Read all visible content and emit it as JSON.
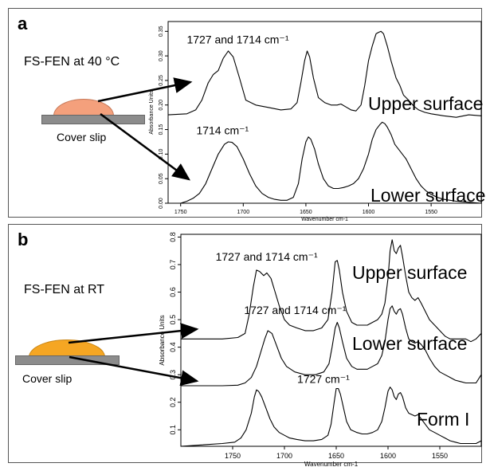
{
  "chart_data": [
    {
      "type": "line",
      "panel": "a",
      "sample_label": "FS-FEN at 40 °C",
      "slip_label": "Cover slip",
      "drop_color": "#f4a07c",
      "xlabel": "Wavenumber cm-1",
      "ylabel": "Absorbance Units",
      "xlim": [
        1760,
        1510
      ],
      "ylim": [
        0.0,
        0.37
      ],
      "x_ticks": [
        "1750",
        "1700",
        "1650",
        "1600",
        "1550"
      ],
      "x_tick_values": [
        1750,
        1700,
        1650,
        1600,
        1550
      ],
      "y_ticks": [
        "0.00",
        "0.05",
        "0.10",
        "0.15",
        "0.20",
        "0.25",
        "0.30",
        "0.35"
      ],
      "y_tick_values": [
        0.0,
        0.05,
        0.1,
        0.15,
        0.2,
        0.25,
        0.3,
        0.35
      ],
      "grid": false,
      "series": [
        {
          "name": "Upper surface",
          "x": [
            1760,
            1745,
            1738,
            1733,
            1728,
            1724,
            1720,
            1716,
            1712,
            1708,
            1703,
            1698,
            1690,
            1680,
            1670,
            1662,
            1657,
            1654,
            1651,
            1649,
            1647,
            1644,
            1640,
            1635,
            1630,
            1625,
            1622,
            1618,
            1614,
            1610,
            1606,
            1603,
            1600,
            1597,
            1594,
            1592,
            1590,
            1588,
            1585,
            1582,
            1578,
            1575,
            1572,
            1568,
            1564,
            1560,
            1555,
            1550,
            1545,
            1540,
            1530,
            1520,
            1510
          ],
          "y": [
            0.18,
            0.182,
            0.19,
            0.21,
            0.245,
            0.262,
            0.27,
            0.295,
            0.31,
            0.298,
            0.255,
            0.21,
            0.2,
            0.195,
            0.19,
            0.192,
            0.205,
            0.245,
            0.29,
            0.31,
            0.298,
            0.255,
            0.215,
            0.205,
            0.2,
            0.2,
            0.202,
            0.196,
            0.19,
            0.188,
            0.2,
            0.24,
            0.29,
            0.32,
            0.345,
            0.348,
            0.35,
            0.345,
            0.32,
            0.29,
            0.255,
            0.24,
            0.22,
            0.21,
            0.198,
            0.19,
            0.185,
            0.182,
            0.18,
            0.178,
            0.175,
            0.18,
            0.178
          ]
        },
        {
          "name": "Lower surface",
          "x": [
            1760,
            1750,
            1745,
            1740,
            1735,
            1730,
            1725,
            1720,
            1715,
            1712,
            1709,
            1705,
            1700,
            1695,
            1690,
            1685,
            1680,
            1675,
            1670,
            1665,
            1660,
            1656,
            1653,
            1650,
            1648,
            1646,
            1643,
            1640,
            1636,
            1632,
            1628,
            1624,
            1620,
            1616,
            1612,
            1608,
            1604,
            1600,
            1597,
            1594,
            1591,
            1589,
            1587,
            1585,
            1582,
            1579,
            1576,
            1573,
            1570,
            1566,
            1562,
            1558,
            1554,
            1550,
            1545,
            1540,
            1530,
            1520,
            1510
          ],
          "y": [
            0.0,
            0.0,
            0.004,
            0.01,
            0.02,
            0.04,
            0.07,
            0.1,
            0.12,
            0.125,
            0.124,
            0.115,
            0.09,
            0.06,
            0.035,
            0.02,
            0.012,
            0.008,
            0.006,
            0.006,
            0.012,
            0.04,
            0.09,
            0.125,
            0.135,
            0.13,
            0.11,
            0.08,
            0.05,
            0.035,
            0.03,
            0.03,
            0.032,
            0.035,
            0.04,
            0.05,
            0.07,
            0.1,
            0.13,
            0.15,
            0.16,
            0.165,
            0.162,
            0.155,
            0.14,
            0.12,
            0.11,
            0.1,
            0.09,
            0.07,
            0.05,
            0.035,
            0.025,
            0.018,
            0.012,
            0.008,
            0.004,
            0.002,
            0.0
          ]
        }
      ],
      "annotations": [
        {
          "text": "1727 and 1714 cm⁻¹",
          "x": 1712,
          "y": 0.325
        },
        {
          "text": "1714 cm⁻¹",
          "x": 1712,
          "y": 0.14
        }
      ]
    },
    {
      "type": "line",
      "panel": "b",
      "sample_label": "FS-FEN at RT",
      "slip_label": "Cover slip",
      "drop_color": "#f5a623",
      "xlabel": "Wavenumber cm-1",
      "ylabel": "Absorbance Units",
      "xlim": [
        1800,
        1510
      ],
      "ylim": [
        0.04,
        0.81
      ],
      "x_ticks": [
        "1750",
        "1700",
        "1650",
        "1600",
        "1550"
      ],
      "x_tick_values": [
        1750,
        1700,
        1650,
        1600,
        1550
      ],
      "y_ticks": [
        "0.1",
        "0.2",
        "0.3",
        "0.4",
        "0.5",
        "0.6",
        "0.7",
        "0.8"
      ],
      "y_tick_values": [
        0.1,
        0.2,
        0.3,
        0.4,
        0.5,
        0.6,
        0.7,
        0.8
      ],
      "grid": false,
      "series": [
        {
          "name": "Upper surface",
          "x": [
            1800,
            1780,
            1760,
            1745,
            1738,
            1734,
            1730,
            1727,
            1724,
            1720,
            1717,
            1713,
            1709,
            1705,
            1700,
            1695,
            1688,
            1680,
            1672,
            1664,
            1658,
            1654,
            1651,
            1649,
            1647,
            1644,
            1640,
            1635,
            1630,
            1625,
            1620,
            1615,
            1610,
            1606,
            1603,
            1600,
            1598,
            1596,
            1594,
            1592,
            1590,
            1588,
            1586,
            1583,
            1580,
            1577,
            1574,
            1571,
            1568,
            1564,
            1560,
            1555,
            1550,
            1545,
            1540,
            1535,
            1530,
            1525,
            1520,
            1515,
            1510
          ],
          "y": [
            0.43,
            0.43,
            0.43,
            0.435,
            0.45,
            0.52,
            0.62,
            0.68,
            0.675,
            0.66,
            0.67,
            0.65,
            0.6,
            0.55,
            0.5,
            0.48,
            0.47,
            0.46,
            0.46,
            0.47,
            0.5,
            0.6,
            0.71,
            0.715,
            0.68,
            0.6,
            0.53,
            0.49,
            0.48,
            0.48,
            0.48,
            0.49,
            0.5,
            0.52,
            0.56,
            0.65,
            0.75,
            0.79,
            0.75,
            0.74,
            0.76,
            0.77,
            0.73,
            0.66,
            0.6,
            0.58,
            0.57,
            0.58,
            0.56,
            0.53,
            0.5,
            0.48,
            0.46,
            0.44,
            0.43,
            0.43,
            0.43,
            0.43,
            0.42,
            0.43,
            0.45
          ]
        },
        {
          "name": "Lower surface",
          "x": [
            1800,
            1780,
            1760,
            1745,
            1738,
            1732,
            1727,
            1723,
            1719,
            1716,
            1712,
            1708,
            1703,
            1698,
            1690,
            1680,
            1670,
            1662,
            1657,
            1654,
            1651,
            1649,
            1647,
            1644,
            1640,
            1635,
            1630,
            1625,
            1620,
            1615,
            1610,
            1606,
            1603,
            1600,
            1598,
            1596,
            1594,
            1592,
            1590,
            1588,
            1586,
            1583,
            1580,
            1577,
            1574,
            1571,
            1568,
            1564,
            1560,
            1555,
            1550,
            1545,
            1540,
            1535,
            1530,
            1525,
            1520,
            1515,
            1510
          ],
          "y": [
            0.26,
            0.26,
            0.26,
            0.262,
            0.27,
            0.29,
            0.33,
            0.38,
            0.43,
            0.46,
            0.45,
            0.41,
            0.36,
            0.33,
            0.31,
            0.3,
            0.3,
            0.31,
            0.34,
            0.4,
            0.47,
            0.49,
            0.47,
            0.42,
            0.36,
            0.33,
            0.32,
            0.32,
            0.32,
            0.33,
            0.34,
            0.37,
            0.42,
            0.5,
            0.54,
            0.55,
            0.53,
            0.52,
            0.535,
            0.54,
            0.52,
            0.47,
            0.43,
            0.42,
            0.415,
            0.42,
            0.41,
            0.39,
            0.36,
            0.33,
            0.31,
            0.3,
            0.29,
            0.28,
            0.275,
            0.27,
            0.27,
            0.27,
            0.3
          ]
        },
        {
          "name": "Form I",
          "x": [
            1800,
            1780,
            1760,
            1748,
            1742,
            1737,
            1732,
            1729,
            1727,
            1725,
            1722,
            1718,
            1714,
            1710,
            1705,
            1700,
            1695,
            1688,
            1680,
            1672,
            1664,
            1658,
            1655,
            1652,
            1650,
            1648,
            1646,
            1643,
            1640,
            1636,
            1630,
            1625,
            1620,
            1615,
            1610,
            1606,
            1603,
            1600,
            1598,
            1596,
            1594,
            1592,
            1590,
            1588,
            1586,
            1583,
            1580,
            1577,
            1574,
            1571,
            1568,
            1564,
            1560,
            1555,
            1550,
            1545,
            1540,
            1535,
            1530,
            1525,
            1520,
            1515,
            1510
          ],
          "y": [
            0.04,
            0.045,
            0.05,
            0.055,
            0.07,
            0.1,
            0.16,
            0.22,
            0.245,
            0.24,
            0.22,
            0.18,
            0.14,
            0.11,
            0.09,
            0.08,
            0.07,
            0.065,
            0.06,
            0.06,
            0.065,
            0.08,
            0.12,
            0.2,
            0.25,
            0.25,
            0.23,
            0.18,
            0.13,
            0.1,
            0.09,
            0.085,
            0.085,
            0.09,
            0.1,
            0.13,
            0.18,
            0.24,
            0.255,
            0.245,
            0.22,
            0.21,
            0.23,
            0.235,
            0.22,
            0.18,
            0.16,
            0.155,
            0.15,
            0.155,
            0.14,
            0.12,
            0.1,
            0.09,
            0.08,
            0.07,
            0.06,
            0.055,
            0.05,
            0.05,
            0.05,
            0.05,
            0.06
          ]
        }
      ],
      "annotations": [
        {
          "text": "1727 and 1714 cm⁻¹",
          "x": 1728,
          "y": 0.715
        },
        {
          "text": "1727 and 1714 cm⁻¹",
          "x": 1702,
          "y": 0.52
        },
        {
          "text": "1727 cm⁻¹",
          "x": 1680,
          "y": 0.27
        }
      ]
    }
  ],
  "panel_a": {
    "letter": "a",
    "sample_label": "FS-FEN at 40 °C",
    "slip_label": "Cover slip"
  },
  "panel_b": {
    "letter": "b",
    "sample_label": "FS-FEN at RT",
    "slip_label": "Cover slip"
  }
}
